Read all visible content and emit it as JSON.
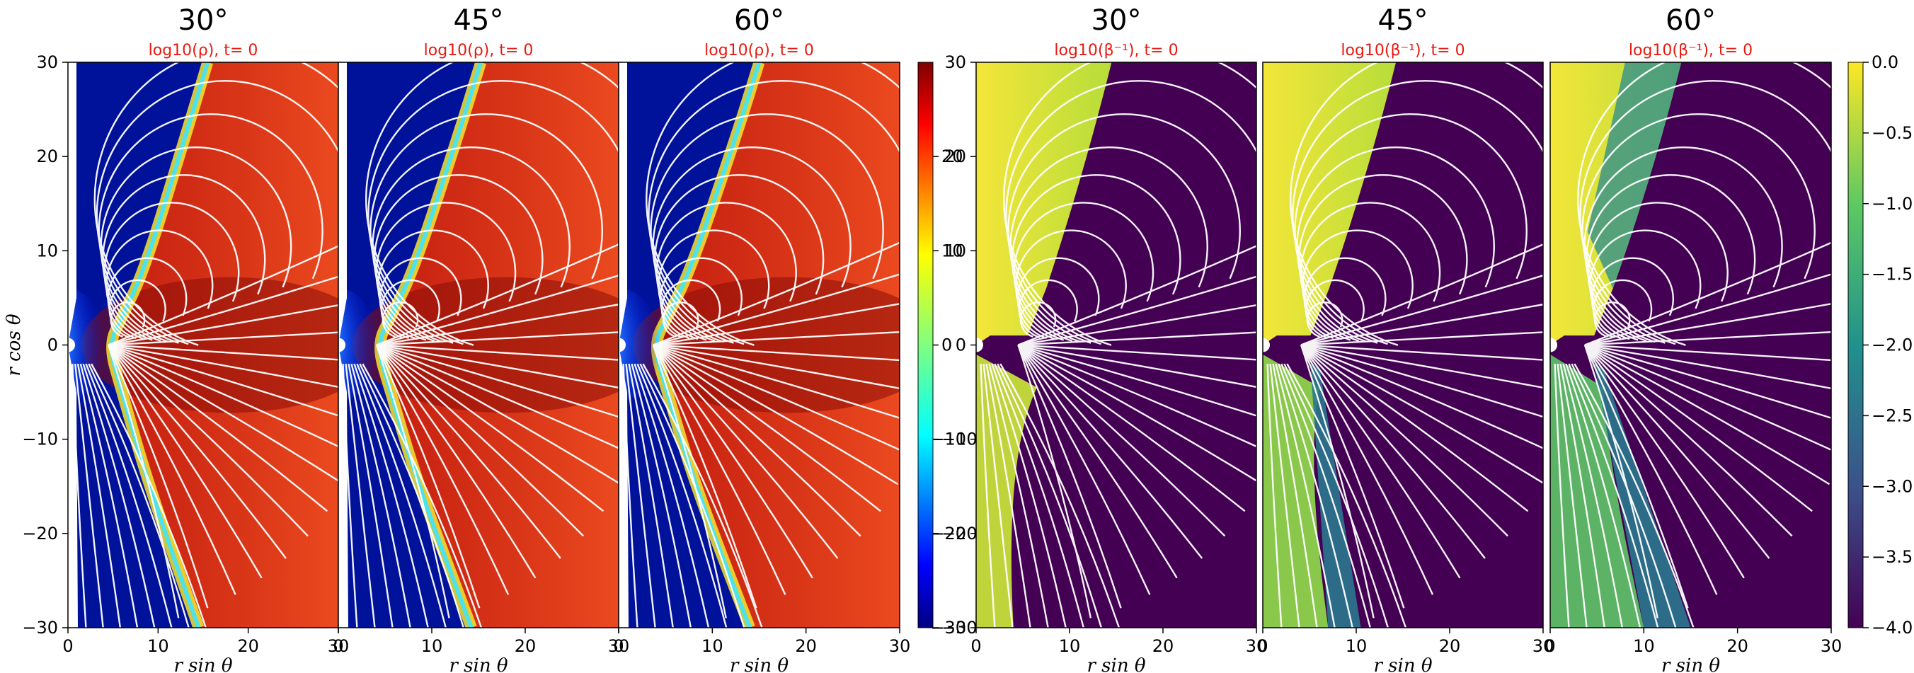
{
  "chart_data": {
    "type": "heatmap",
    "description_labels": {
      "xlabel": "r sin θ",
      "ylabel": "r cos θ"
    },
    "xlim": [
      0,
      30
    ],
    "ylim": [
      -30,
      30
    ],
    "x_ticks": [
      "0",
      "10",
      "20",
      "30"
    ],
    "y_ticks": [
      "30",
      "20",
      "10",
      "0",
      "−10",
      "−20",
      "−30"
    ],
    "panels": [
      {
        "angle": "30°",
        "subtitle": "log10(ρ), t= 0",
        "quantity": "density",
        "inclination_deg": 30
      },
      {
        "angle": "45°",
        "subtitle": "log10(ρ), t= 0",
        "quantity": "density",
        "inclination_deg": 45
      },
      {
        "angle": "60°",
        "subtitle": "log10(ρ), t= 0",
        "quantity": "density",
        "inclination_deg": 60
      },
      {
        "angle": "30°",
        "subtitle": "log10(β⁻¹), t= 0",
        "quantity": "inverse_beta",
        "inclination_deg": 30
      },
      {
        "angle": "45°",
        "subtitle": "log10(β⁻¹), t= 0",
        "quantity": "inverse_beta",
        "inclination_deg": 45
      },
      {
        "angle": "60°",
        "subtitle": "log10(β⁻¹), t= 0",
        "quantity": "inverse_beta",
        "inclination_deg": 60
      }
    ],
    "colorbars": [
      {
        "name": "density",
        "colormap": "jet",
        "ticks": [
          "20",
          "10",
          "0",
          "−10",
          "−20",
          "−30"
        ],
        "range": [
          -30,
          30
        ]
      },
      {
        "name": "inverse_beta",
        "colormap": "viridis",
        "ticks": [
          "0.0",
          "−0.5",
          "−1.0",
          "−1.5",
          "−2.0",
          "−2.5",
          "−3.0",
          "−3.5",
          "−4.0"
        ],
        "range": [
          -4.0,
          0.0
        ]
      }
    ]
  }
}
